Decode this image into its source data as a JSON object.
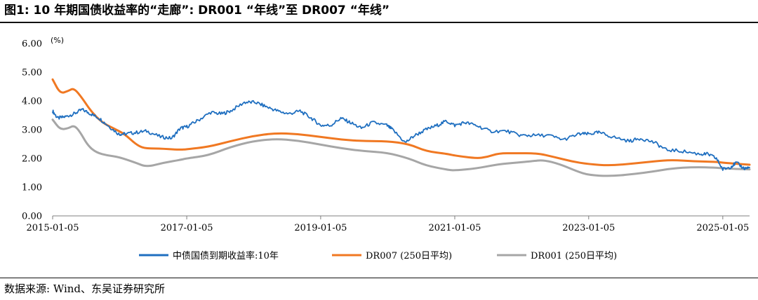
{
  "title": "图1: 10 年期国债收益率的“走廊”: DR001 “年线”至 DR007 “年线”",
  "source": "数据来源: Wind、东吴证券研究所",
  "chart_data": {
    "type": "line",
    "title": "",
    "xlabel": "",
    "ylabel": "(%)",
    "ylim": [
      0,
      6
    ],
    "y_ticks": [
      "0.00",
      "1.00",
      "2.00",
      "3.00",
      "4.00",
      "5.00",
      "6.00"
    ],
    "x_range": [
      "2015-01-05",
      "2025-05-31"
    ],
    "x_ticks": [
      "2015-01-05",
      "2017-01-05",
      "2019-01-05",
      "2021-01-05",
      "2023-01-05",
      "2025-01-05"
    ],
    "grid": false,
    "legend_position": "bottom",
    "series": [
      {
        "name": "中债国债到期收益率:10年",
        "color": "#1f6fc0",
        "points": [
          [
            "2015-01-05",
            3.65
          ],
          [
            "2015-02-01",
            3.4
          ],
          [
            "2015-03-15",
            3.45
          ],
          [
            "2015-05-01",
            3.55
          ],
          [
            "2015-06-15",
            3.7
          ],
          [
            "2015-08-01",
            3.55
          ],
          [
            "2015-09-15",
            3.4
          ],
          [
            "2015-11-01",
            3.15
          ],
          [
            "2015-12-31",
            2.85
          ],
          [
            "2016-02-01",
            2.85
          ],
          [
            "2016-04-01",
            2.9
          ],
          [
            "2016-06-01",
            2.95
          ],
          [
            "2016-08-15",
            2.75
          ],
          [
            "2016-10-15",
            2.7
          ],
          [
            "2016-12-01",
            3.05
          ],
          [
            "2017-01-05",
            3.1
          ],
          [
            "2017-03-01",
            3.3
          ],
          [
            "2017-05-15",
            3.6
          ],
          [
            "2017-07-15",
            3.55
          ],
          [
            "2017-09-01",
            3.65
          ],
          [
            "2017-11-15",
            3.95
          ],
          [
            "2018-01-15",
            3.95
          ],
          [
            "2018-03-15",
            3.8
          ],
          [
            "2018-05-15",
            3.65
          ],
          [
            "2018-07-15",
            3.55
          ],
          [
            "2018-09-15",
            3.65
          ],
          [
            "2018-11-15",
            3.4
          ],
          [
            "2019-01-05",
            3.15
          ],
          [
            "2019-03-01",
            3.15
          ],
          [
            "2019-04-25",
            3.4
          ],
          [
            "2019-06-15",
            3.25
          ],
          [
            "2019-08-15",
            3.05
          ],
          [
            "2019-10-15",
            3.25
          ],
          [
            "2019-12-31",
            3.15
          ],
          [
            "2020-02-01",
            3.0
          ],
          [
            "2020-04-10",
            2.55
          ],
          [
            "2020-06-01",
            2.8
          ],
          [
            "2020-08-01",
            3.0
          ],
          [
            "2020-10-01",
            3.15
          ],
          [
            "2020-11-20",
            3.3
          ],
          [
            "2021-01-05",
            3.15
          ],
          [
            "2021-03-01",
            3.25
          ],
          [
            "2021-05-01",
            3.15
          ],
          [
            "2021-07-15",
            2.95
          ],
          [
            "2021-10-15",
            2.95
          ],
          [
            "2021-12-31",
            2.8
          ],
          [
            "2022-03-01",
            2.8
          ],
          [
            "2022-06-01",
            2.8
          ],
          [
            "2022-08-20",
            2.65
          ],
          [
            "2022-11-15",
            2.85
          ],
          [
            "2023-01-05",
            2.85
          ],
          [
            "2023-03-01",
            2.9
          ],
          [
            "2023-05-15",
            2.75
          ],
          [
            "2023-08-15",
            2.6
          ],
          [
            "2023-10-15",
            2.7
          ],
          [
            "2023-12-31",
            2.55
          ],
          [
            "2024-03-01",
            2.3
          ],
          [
            "2024-06-01",
            2.25
          ],
          [
            "2024-09-01",
            2.15
          ],
          [
            "2024-10-15",
            2.15
          ],
          [
            "2024-12-01",
            2.0
          ],
          [
            "2025-01-05",
            1.62
          ],
          [
            "2025-02-15",
            1.7
          ],
          [
            "2025-03-20",
            1.85
          ],
          [
            "2025-05-01",
            1.65
          ],
          [
            "2025-05-31",
            1.68
          ]
        ]
      },
      {
        "name": "DR007 (250日平均)",
        "color": "#f07822",
        "points": [
          [
            "2015-01-05",
            4.75
          ],
          [
            "2015-02-15",
            4.25
          ],
          [
            "2015-04-01",
            4.35
          ],
          [
            "2015-05-01",
            4.45
          ],
          [
            "2015-06-15",
            4.1
          ],
          [
            "2015-08-01",
            3.65
          ],
          [
            "2015-10-01",
            3.25
          ],
          [
            "2015-12-01",
            3.05
          ],
          [
            "2016-02-01",
            2.85
          ],
          [
            "2016-04-01",
            2.5
          ],
          [
            "2016-05-15",
            2.35
          ],
          [
            "2016-08-01",
            2.35
          ],
          [
            "2016-12-01",
            2.3
          ],
          [
            "2017-01-05",
            2.32
          ],
          [
            "2017-05-01",
            2.4
          ],
          [
            "2017-09-01",
            2.6
          ],
          [
            "2018-01-01",
            2.78
          ],
          [
            "2018-05-01",
            2.88
          ],
          [
            "2018-09-01",
            2.85
          ],
          [
            "2019-01-05",
            2.75
          ],
          [
            "2019-05-01",
            2.65
          ],
          [
            "2019-09-01",
            2.6
          ],
          [
            "2020-01-01",
            2.6
          ],
          [
            "2020-05-01",
            2.5
          ],
          [
            "2020-08-01",
            2.25
          ],
          [
            "2020-12-01",
            2.15
          ],
          [
            "2021-01-05",
            2.1
          ],
          [
            "2021-05-01",
            2.0
          ],
          [
            "2021-07-01",
            2.05
          ],
          [
            "2021-09-01",
            2.18
          ],
          [
            "2021-12-01",
            2.18
          ],
          [
            "2022-04-01",
            2.18
          ],
          [
            "2022-07-01",
            2.05
          ],
          [
            "2022-10-01",
            1.9
          ],
          [
            "2023-01-05",
            1.8
          ],
          [
            "2023-05-01",
            1.75
          ],
          [
            "2023-09-01",
            1.82
          ],
          [
            "2023-12-31",
            1.9
          ],
          [
            "2024-04-01",
            1.95
          ],
          [
            "2024-08-01",
            1.9
          ],
          [
            "2024-12-01",
            1.88
          ],
          [
            "2025-01-05",
            1.85
          ],
          [
            "2025-05-31",
            1.78
          ]
        ]
      },
      {
        "name": "DR001 (250日平均)",
        "color": "#a6a6a6",
        "points": [
          [
            "2015-01-05",
            3.35
          ],
          [
            "2015-02-15",
            3.0
          ],
          [
            "2015-04-01",
            3.05
          ],
          [
            "2015-05-01",
            3.15
          ],
          [
            "2015-06-01",
            2.95
          ],
          [
            "2015-07-15",
            2.45
          ],
          [
            "2015-09-01",
            2.2
          ],
          [
            "2015-11-01",
            2.1
          ],
          [
            "2016-01-01",
            2.05
          ],
          [
            "2016-04-01",
            1.85
          ],
          [
            "2016-06-01",
            1.7
          ],
          [
            "2016-09-01",
            1.85
          ],
          [
            "2016-12-01",
            1.95
          ],
          [
            "2017-01-05",
            2.0
          ],
          [
            "2017-05-01",
            2.1
          ],
          [
            "2017-09-01",
            2.4
          ],
          [
            "2018-01-01",
            2.6
          ],
          [
            "2018-05-01",
            2.68
          ],
          [
            "2018-09-01",
            2.62
          ],
          [
            "2019-01-05",
            2.48
          ],
          [
            "2019-05-01",
            2.35
          ],
          [
            "2019-09-01",
            2.25
          ],
          [
            "2020-01-01",
            2.2
          ],
          [
            "2020-05-01",
            2.0
          ],
          [
            "2020-08-01",
            1.75
          ],
          [
            "2020-12-01",
            1.6
          ],
          [
            "2021-01-05",
            1.58
          ],
          [
            "2021-05-01",
            1.65
          ],
          [
            "2021-09-01",
            1.8
          ],
          [
            "2021-12-01",
            1.85
          ],
          [
            "2022-03-01",
            1.9
          ],
          [
            "2022-05-01",
            1.95
          ],
          [
            "2022-08-01",
            1.8
          ],
          [
            "2022-11-01",
            1.55
          ],
          [
            "2023-01-05",
            1.42
          ],
          [
            "2023-05-01",
            1.38
          ],
          [
            "2023-09-01",
            1.45
          ],
          [
            "2023-12-31",
            1.55
          ],
          [
            "2024-04-01",
            1.65
          ],
          [
            "2024-08-01",
            1.7
          ],
          [
            "2024-12-01",
            1.68
          ],
          [
            "2025-01-05",
            1.65
          ],
          [
            "2025-05-31",
            1.62
          ]
        ]
      }
    ]
  }
}
